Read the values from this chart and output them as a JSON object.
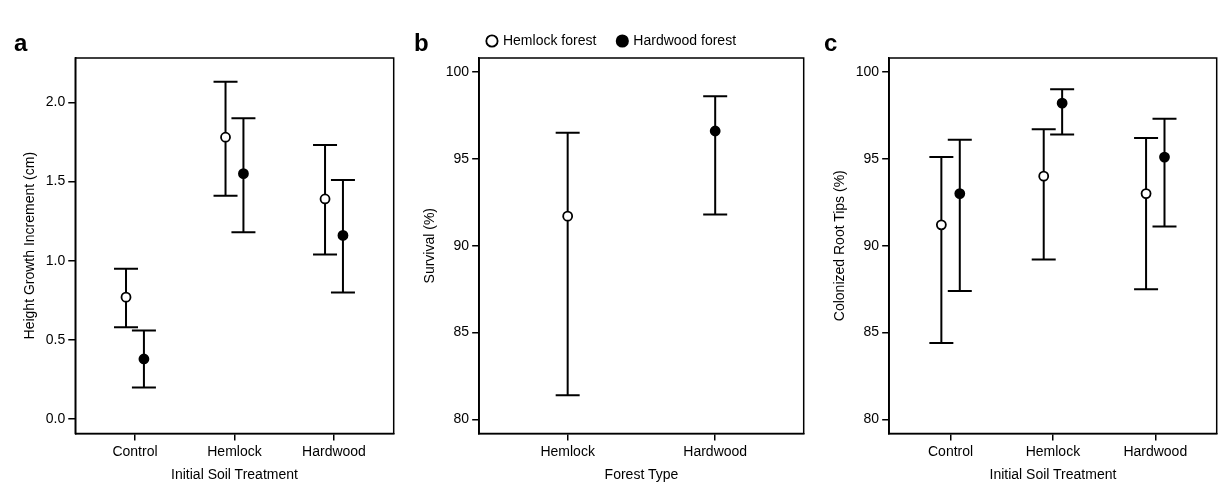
{
  "chart_data": [
    {
      "type": "scatter",
      "title": "a",
      "xlabel": "Initial Soil Treatment",
      "ylabel": "Height Growth Increment (cm)",
      "categories": [
        "Control",
        "Hemlock",
        "Hardwood"
      ],
      "marker": "circle",
      "ylim": [
        -0.09,
        2.28
      ],
      "yticks": [
        {
          "value": 0,
          "label": "0.0"
        },
        {
          "value": 0.5,
          "label": "0.5"
        },
        {
          "value": 1,
          "label": "1.0"
        },
        {
          "value": 1.5,
          "label": "1.5"
        },
        {
          "value": 2,
          "label": "2.0"
        }
      ],
      "series": [
        {
          "color": "#000000",
          "values": [
            0.77,
            1.78,
            1.39
          ],
          "errors": [
            [
              0.58,
              0.95
            ],
            [
              1.41,
              2.13
            ],
            [
              1.04,
              1.73
            ]
          ]
        },
        {
          "color": "#000000",
          "values": [
            0.38,
            1.55,
            1.16
          ],
          "errors": [
            [
              0.2,
              0.56
            ],
            [
              1.18,
              1.9
            ],
            [
              0.8,
              1.51
            ]
          ]
        }
      ]
    },
    {
      "type": "scatter",
      "title": "b",
      "xlabel": "Forest Type",
      "ylabel": "Survival (%)",
      "categories": [
        "Hemlock",
        "Hardwood"
      ],
      "marker": "circle",
      "legend": "top",
      "ylim": [
        79.2,
        100.8
      ],
      "yticks": [
        80,
        85,
        90,
        95,
        100
      ],
      "series": [
        {
          "name": "Hemlock forest",
          "color": "#000000",
          "values": [
            91.7,
            null
          ],
          "errors": [
            [
              81.4,
              96.5
            ],
            null
          ]
        },
        {
          "name": "Hardwood forest",
          "color": "#000000",
          "values": [
            null,
            96.6
          ],
          "errors": [
            null,
            [
              91.8,
              98.6
            ]
          ]
        }
      ]
    },
    {
      "type": "scatter",
      "title": "c",
      "xlabel": "Initial Soil Treatment",
      "ylabel": "Colonized Root Tips (%)",
      "categories": [
        "Control",
        "Hemlock",
        "Hardwood"
      ],
      "marker": "circle",
      "ylim": [
        79.2,
        100.8
      ],
      "yticks": [
        80,
        85,
        90,
        95,
        100
      ],
      "series": [
        {
          "color": "#000000",
          "values": [
            91.2,
            94.0,
            93.0
          ],
          "errors": [
            [
              84.4,
              95.1
            ],
            [
              89.2,
              96.7
            ],
            [
              87.5,
              96.2
            ]
          ]
        },
        {
          "color": "#000000",
          "values": [
            93.0,
            98.2,
            95.1
          ],
          "errors": [
            [
              87.4,
              96.1
            ],
            [
              96.4,
              99.0
            ],
            [
              91.1,
              97.3
            ]
          ]
        }
      ]
    }
  ]
}
